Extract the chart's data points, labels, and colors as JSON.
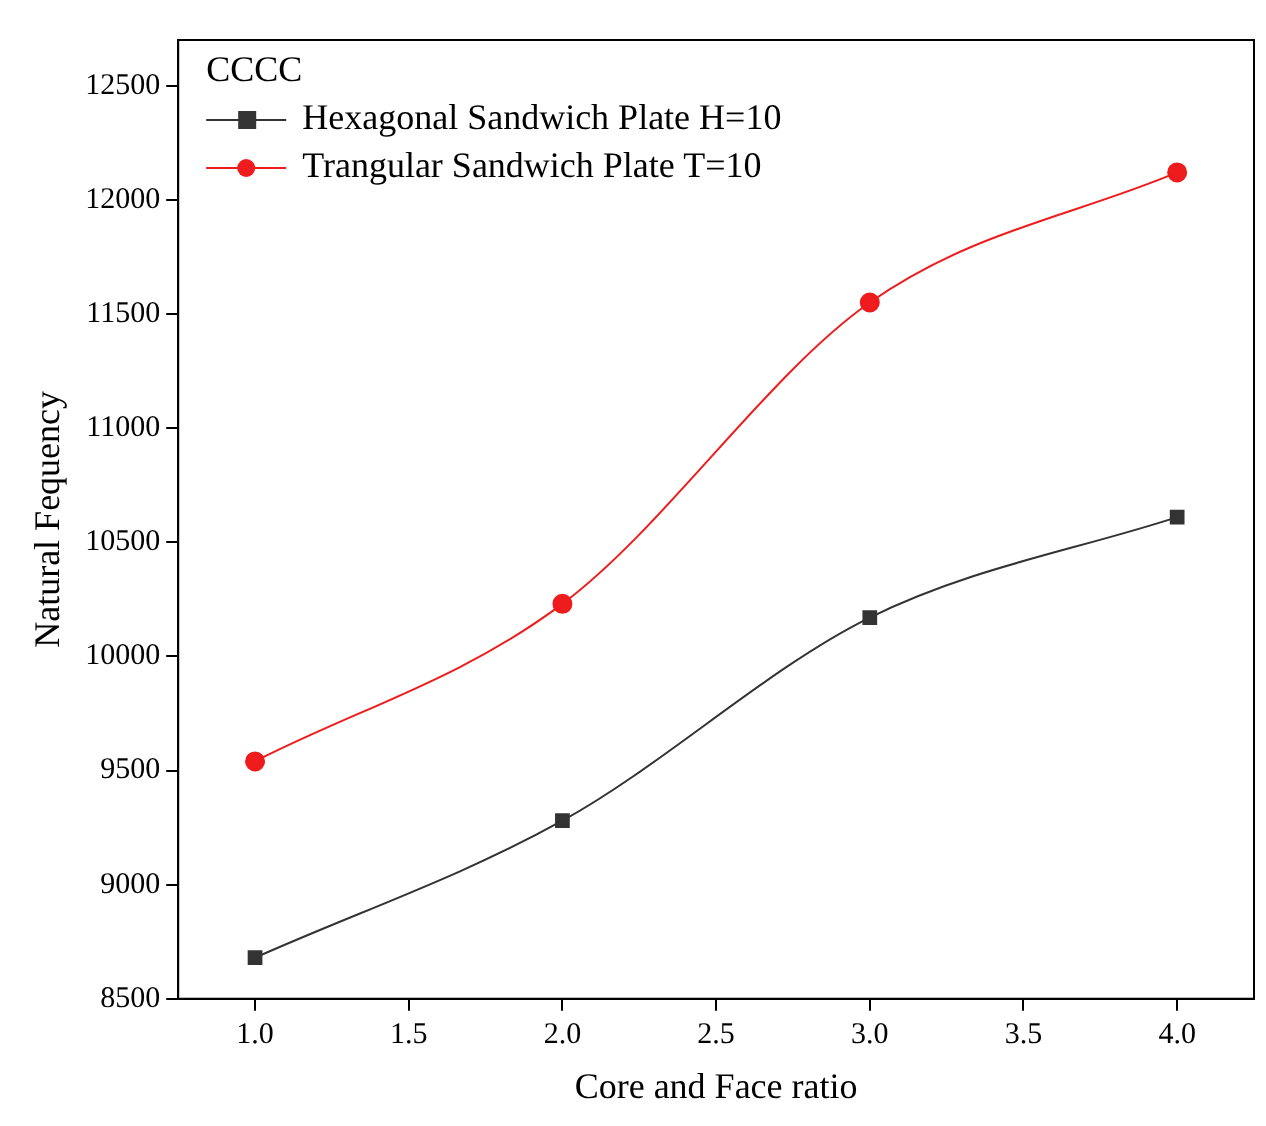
{
  "chart_data": {
    "type": "line",
    "legend_title": "CCCC",
    "xlabel": "Core and Face ratio",
    "ylabel": "Natural Fequency",
    "x": [
      1,
      2,
      3,
      4
    ],
    "series": [
      {
        "name": "Hexagonal Sandwich Plate H=10",
        "color": "#333333",
        "marker": "square",
        "values": [
          8680,
          9280,
          10170,
          10610
        ]
      },
      {
        "name": "Trangular Sandwich Plate T=10",
        "color": "#ee1c1c",
        "marker": "circle",
        "values": [
          9540,
          10230,
          11550,
          12120
        ]
      }
    ],
    "xlim": [
      0.75,
      4.25
    ],
    "xticks": [
      {
        "value": 1,
        "label": "1.0"
      },
      {
        "value": 1.5,
        "label": "1.5"
      },
      {
        "value": 2,
        "label": "2.0"
      },
      {
        "value": 2.5,
        "label": "2.5"
      },
      {
        "value": 3,
        "label": "3.0"
      },
      {
        "value": 3.5,
        "label": "3.5"
      },
      {
        "value": 4,
        "label": "4.0"
      }
    ],
    "ylim": [
      8500,
      12700
    ],
    "yticks": [
      8500,
      9000,
      9500,
      10000,
      10500,
      11000,
      11500,
      12000,
      12500
    ],
    "grid": false,
    "legend": "top left"
  }
}
